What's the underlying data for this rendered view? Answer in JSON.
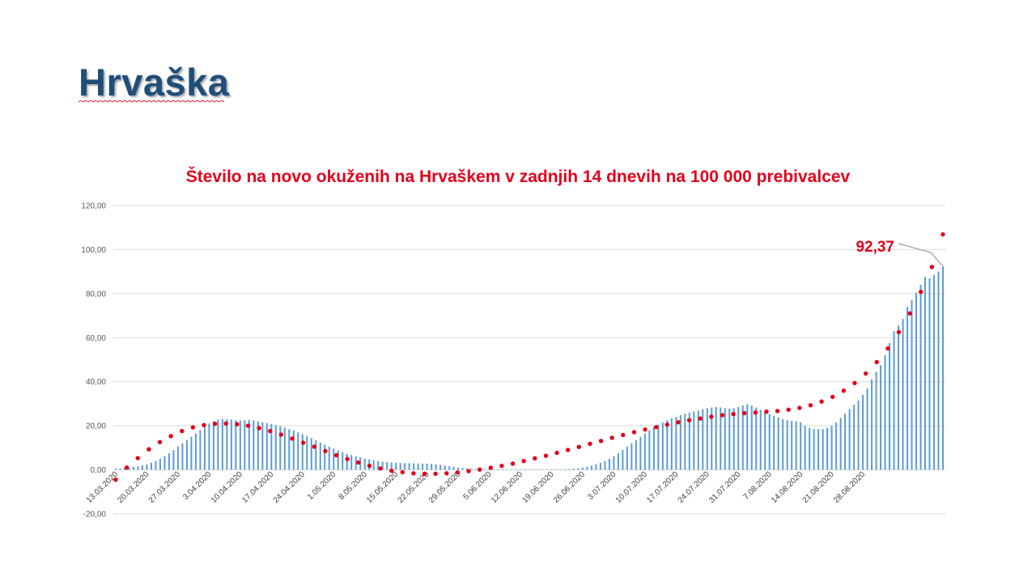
{
  "slide": {
    "title": "Hrvaška"
  },
  "colors": {
    "title": "#1f4e79",
    "bar": "#5b9bd5",
    "trend": "#e3001b",
    "annotation": "#e3001b",
    "grid": "#d9d9d9"
  },
  "chart_data": {
    "type": "bar",
    "title": "Število na novo okuženih na Hrvaškem v zadnjih 14 dnevih na 100 000 prebivalcev",
    "xlabel": "",
    "ylabel": "",
    "ylim": [
      -20,
      120
    ],
    "y_ticks": [
      "120,00",
      "100,00",
      "80,00",
      "60,00",
      "40,00",
      "20,00",
      "0,00",
      "-20,00"
    ],
    "y_tick_values": [
      120,
      100,
      80,
      60,
      40,
      20,
      0,
      -20
    ],
    "x_tick_labels": [
      "13.03.2020",
      "20.03.2020",
      "27.03.2020",
      "3.04.2020",
      "10.04.2020",
      "17.04.2020",
      "24.04.2020",
      "1.05.2020",
      "8.05.2020",
      "15.05.2020",
      "22.05.2020",
      "29.05.2020",
      "5.06.2020",
      "12.06.2020",
      "19.06.2020",
      "26.06.2020",
      "3.07.2020",
      "10.07.2020",
      "17.07.2020",
      "24.07.2020",
      "31.07.2020",
      "7.08.2020",
      "14.08.2020",
      "21.08.2020",
      "28.08.2020"
    ],
    "x_start": "13.03.2020",
    "x_end": "31.08.2020",
    "grid": true,
    "legend": "none",
    "series": [
      {
        "name": "",
        "type": "bar",
        "values": [
          0.5,
          0.6,
          0.8,
          1.0,
          1.3,
          1.6,
          2.0,
          2.5,
          3.2,
          4.0,
          5.0,
          6.2,
          7.5,
          9.0,
          10.5,
          12.0,
          13.5,
          15.0,
          16.5,
          18.0,
          19.5,
          21.0,
          22.0,
          22.8,
          23.1,
          23.0,
          22.8,
          22.5,
          22.4,
          22.5,
          22.6,
          22.4,
          22.0,
          21.6,
          21.2,
          20.8,
          20.3,
          19.8,
          19.2,
          18.5,
          17.8,
          17.0,
          16.2,
          15.3,
          14.4,
          13.4,
          12.4,
          11.4,
          10.5,
          9.6,
          8.8,
          8.0,
          7.3,
          6.7,
          6.1,
          5.6,
          5.1,
          4.7,
          4.3,
          4.0,
          3.7,
          3.5,
          3.3,
          3.2,
          3.1,
          3.0,
          3.0,
          2.9,
          2.9,
          2.8,
          2.8,
          2.7,
          2.5,
          2.2,
          1.9,
          1.6,
          1.3,
          1.0,
          0.8,
          0.6,
          0.5,
          0.4,
          0.3,
          0.3,
          0.2,
          0.2,
          0.2,
          0.1,
          0.1,
          0.1,
          0.1,
          0.1,
          0.1,
          0.1,
          0.1,
          0.1,
          0.1,
          0.1,
          0.1,
          0.1,
          0.1,
          0.2,
          0.3,
          0.5,
          0.7,
          1.0,
          1.4,
          1.9,
          2.5,
          3.2,
          4.0,
          5.0,
          6.2,
          7.5,
          9.0,
          10.5,
          12.0,
          13.5,
          15.0,
          16.5,
          18.0,
          19.5,
          20.5,
          21.5,
          22.5,
          23.3,
          24.0,
          24.8,
          25.5,
          26.0,
          26.5,
          27.0,
          27.5,
          28.0,
          28.3,
          28.5,
          28.3,
          28.0,
          27.8,
          28.0,
          28.5,
          29.2,
          29.8,
          29.2,
          28.3,
          27.3,
          26.3,
          25.3,
          24.5,
          23.8,
          23.0,
          22.5,
          22.2,
          22.0,
          21.5,
          20.0,
          19.0,
          18.5,
          18.5,
          18.5,
          19.0,
          20.0,
          21.5,
          23.5,
          25.5,
          27.5,
          29.5,
          31.5,
          34.0,
          37.0,
          41.0,
          44.5,
          47.5,
          52.0,
          57.5,
          63.0,
          65.5,
          68.5,
          74.0,
          77.0,
          80.5,
          84.0,
          87.5,
          87.0,
          88.5,
          90.0,
          92.37
        ]
      },
      {
        "name": "",
        "type": "polynomial-trend",
        "values": [
          -4.5,
          1.0,
          5.3,
          9.3,
          12.6,
          15.3,
          17.6,
          19.3,
          20.3,
          20.9,
          21.0,
          20.7,
          20.0,
          18.9,
          17.6,
          16.0,
          14.2,
          12.3,
          10.5,
          8.5,
          6.6,
          4.9,
          3.3,
          1.8,
          0.6,
          -0.4,
          -1.1,
          -1.6,
          -1.8,
          -1.8,
          -1.6,
          -1.2,
          -0.6,
          0.1,
          0.9,
          1.8,
          2.8,
          4.0,
          5.2,
          6.4,
          7.7,
          9.0,
          10.4,
          11.8,
          13.1,
          14.5,
          15.8,
          17.1,
          18.3,
          19.4,
          20.5,
          21.6,
          22.5,
          23.3,
          24.1,
          24.8,
          25.3,
          25.7,
          26.0,
          26.4,
          26.7,
          27.3,
          28.1,
          29.3,
          31.0,
          33.1,
          35.9,
          39.4,
          43.7,
          48.9,
          55.1,
          62.5,
          71.0,
          80.8,
          92.1,
          106.9
        ]
      }
    ],
    "annotations": [
      {
        "text": "92,37",
        "target": "31.08.2020"
      }
    ]
  }
}
